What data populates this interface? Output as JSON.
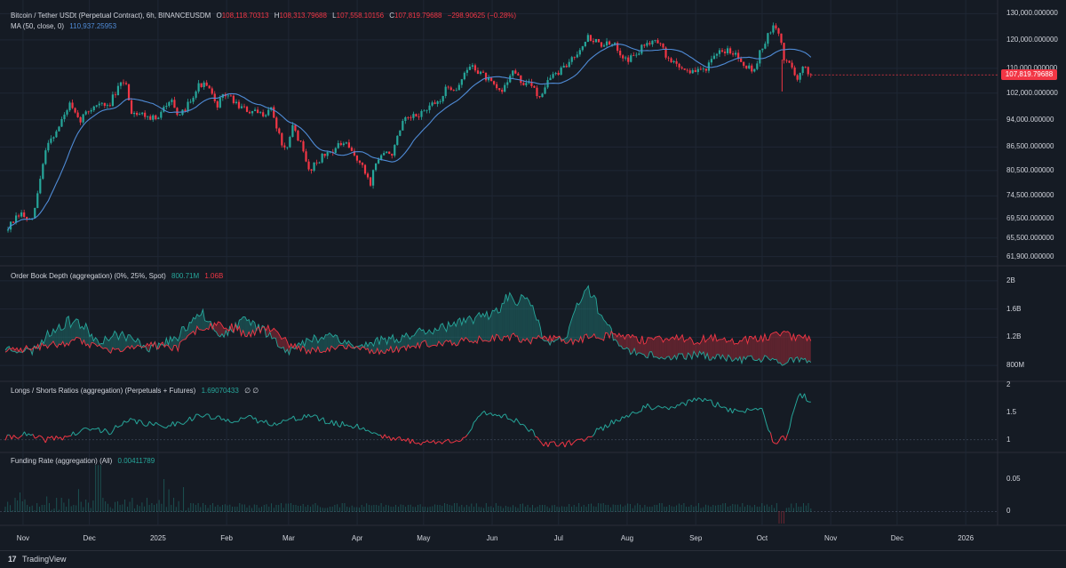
{
  "colors": {
    "bg": "#151b24",
    "grid": "#1f2734",
    "separator": "#2a2e39",
    "up": "#26a69a",
    "down": "#f23645",
    "ma": "#4f8bd6",
    "text": "#d1d4dc"
  },
  "header": {
    "symbol": "Bitcoin / Tether USDt (Perpetual Contract), 6h, BINANCEUSDM",
    "open_key": "O",
    "open": "108,118.70313",
    "high_key": "H",
    "high": "108,313.79688",
    "low_key": "L",
    "low": "107,558.10156",
    "close_key": "C",
    "close": "107,819.79688",
    "change": "−298.90625 (−0.28%)",
    "ma_label": "MA (50, close, 0)",
    "ma_value": "110,937.25953"
  },
  "price_badge": "107,819.79688",
  "orderbook": {
    "label": "Order Book Depth (aggregation) (0%, 25%, Spot)",
    "value1": "800.71M",
    "value2": "1.06B"
  },
  "longshort": {
    "label": "Longs / Shorts Ratios (aggregation) (Perpetuals + Futures)",
    "value": "1.69070433",
    "extra": "∅ ∅"
  },
  "funding": {
    "label": "Funding Rate (aggregation) (All)",
    "value": "0.00411789"
  },
  "footer": {
    "logo": "17",
    "brand": "TradingView"
  },
  "chart_data": [
    {
      "type": "candlestick",
      "title": "Bitcoin / Tether USDt (Perpetual Contract), 6h, BINANCEUSDM",
      "y_scale": "log",
      "ylim": [
        60500,
        133000
      ],
      "y_ticks": [
        "130,000.000000",
        "120,000.000000",
        "110,000.000000",
        "102,000.000000",
        "94,000.000000",
        "86,500.000000",
        "80,500.000000",
        "74,500.000000",
        "69,500.000000",
        "65,500.000000",
        "61,900.000000"
      ],
      "x_ticks": [
        "Nov",
        "Dec",
        "2025",
        "Feb",
        "Mar",
        "Apr",
        "May",
        "Jun",
        "Jul",
        "Aug",
        "Sep",
        "Oct",
        "Nov",
        "Dec",
        "2026"
      ],
      "x_range": [
        "2024-10-24",
        "2026-01-15"
      ],
      "series_close": {
        "t": [
          "2024-10-24",
          "2024-10-31",
          "2024-11-05",
          "2024-11-08",
          "2024-11-12",
          "2024-11-16",
          "2024-11-22",
          "2024-11-26",
          "2024-12-01",
          "2024-12-05",
          "2024-12-09",
          "2024-12-12",
          "2024-12-17",
          "2024-12-20",
          "2024-12-26",
          "2025-01-01",
          "2025-01-07",
          "2025-01-10",
          "2025-01-15",
          "2025-01-20",
          "2025-01-24",
          "2025-01-27",
          "2025-02-01",
          "2025-02-04",
          "2025-02-10",
          "2025-02-17",
          "2025-02-21",
          "2025-02-25",
          "2025-02-28",
          "2025-03-03",
          "2025-03-06",
          "2025-03-10",
          "2025-03-14",
          "2025-03-20",
          "2025-03-26",
          "2025-04-01",
          "2025-04-07",
          "2025-04-09",
          "2025-04-12",
          "2025-04-17",
          "2025-04-22",
          "2025-04-26",
          "2025-05-02",
          "2025-05-08",
          "2025-05-12",
          "2025-05-16",
          "2025-05-22",
          "2025-05-27",
          "2025-06-01",
          "2025-06-05",
          "2025-06-10",
          "2025-06-14",
          "2025-06-20",
          "2025-06-22",
          "2025-06-27",
          "2025-07-03",
          "2025-07-10",
          "2025-07-14",
          "2025-07-20",
          "2025-07-26",
          "2025-08-01",
          "2025-08-04",
          "2025-08-10",
          "2025-08-14",
          "2025-08-19",
          "2025-08-25",
          "2025-08-31",
          "2025-09-06",
          "2025-09-12",
          "2025-09-17",
          "2025-09-22",
          "2025-09-27",
          "2025-10-01",
          "2025-10-06",
          "2025-10-09",
          "2025-10-11",
          "2025-10-14",
          "2025-10-17",
          "2025-10-20",
          "2025-10-23"
        ],
        "close": [
          67000,
          70500,
          68500,
          76000,
          88000,
          90500,
          98500,
          93500,
          97000,
          99000,
          97500,
          101000,
          106500,
          96500,
          95500,
          94000,
          101500,
          93500,
          99500,
          105000,
          103500,
          98000,
          102000,
          99500,
          96500,
          95500,
          97500,
          89000,
          84500,
          92500,
          88000,
          80500,
          83000,
          85500,
          87500,
          83500,
          77500,
          82000,
          84500,
          85000,
          93500,
          94500,
          96800,
          99500,
          104000,
          103500,
          111000,
          108500,
          104500,
          102000,
          109500,
          105500,
          104000,
          100500,
          107000,
          109500,
          116500,
          121000,
          118500,
          118000,
          113000,
          114000,
          119000,
          121000,
          113500,
          110500,
          108500,
          110500,
          115500,
          116500,
          112500,
          109000,
          117500,
          124800,
          122000,
          112500,
          111500,
          106500,
          110500,
          107800
        ],
        "ma50_last": 110937.25953,
        "last_close": 107819.79688
      }
    },
    {
      "type": "area",
      "title": "Order Book Depth (aggregation) (0%, 25%, Spot)",
      "ylim": [
        600000000,
        2200000000
      ],
      "y_ticks": [
        "2B",
        "1.6B",
        "1.2B",
        "800M"
      ],
      "series": [
        {
          "name": "bids",
          "t": [
            "2024-10-24",
            "2024-11-05",
            "2024-11-16",
            "2024-11-25",
            "2024-12-05",
            "2024-12-15",
            "2024-12-28",
            "2025-01-10",
            "2025-01-20",
            "2025-01-30",
            "2025-02-10",
            "2025-02-20",
            "2025-03-01",
            "2025-03-10",
            "2025-03-20",
            "2025-04-01",
            "2025-04-10",
            "2025-04-22",
            "2025-05-01",
            "2025-05-10",
            "2025-05-20",
            "2025-06-01",
            "2025-06-10",
            "2025-06-20",
            "2025-06-25",
            "2025-07-05",
            "2025-07-10",
            "2025-07-15",
            "2025-07-20",
            "2025-07-25",
            "2025-08-01",
            "2025-08-10",
            "2025-08-20",
            "2025-09-01",
            "2025-09-10",
            "2025-09-20",
            "2025-10-01",
            "2025-10-10",
            "2025-10-17",
            "2025-10-23"
          ],
          "values": [
            1050000000,
            1000000000,
            1350000000,
            1450000000,
            1150000000,
            1250000000,
            1050000000,
            1200000000,
            1600000000,
            1200000000,
            1450000000,
            1250000000,
            1000000000,
            1150000000,
            1250000000,
            1050000000,
            1150000000,
            1200000000,
            1300000000,
            1350000000,
            1400000000,
            1550000000,
            1800000000,
            1600000000,
            1100000000,
            1200000000,
            1700000000,
            1900000000,
            1550000000,
            1250000000,
            1000000000,
            950000000,
            900000000,
            950000000,
            920000000,
            880000000,
            900000000,
            850000000,
            880000000,
            830000000
          ]
        },
        {
          "name": "asks",
          "t": [
            "2024-10-24",
            "2024-11-05",
            "2024-11-16",
            "2024-11-25",
            "2024-12-05",
            "2024-12-15",
            "2024-12-28",
            "2025-01-10",
            "2025-01-20",
            "2025-01-30",
            "2025-02-10",
            "2025-02-20",
            "2025-03-01",
            "2025-03-10",
            "2025-03-20",
            "2025-04-01",
            "2025-04-10",
            "2025-04-22",
            "2025-05-01",
            "2025-05-10",
            "2025-05-20",
            "2025-06-01",
            "2025-06-10",
            "2025-06-20",
            "2025-06-25",
            "2025-07-05",
            "2025-07-10",
            "2025-07-15",
            "2025-07-20",
            "2025-07-25",
            "2025-08-01",
            "2025-08-10",
            "2025-08-20",
            "2025-09-01",
            "2025-09-10",
            "2025-09-20",
            "2025-10-01",
            "2025-10-10",
            "2025-10-17",
            "2025-10-23"
          ],
          "values": [
            1000000000,
            1050000000,
            1100000000,
            1150000000,
            1050000000,
            1000000000,
            1100000000,
            1050000000,
            1350000000,
            1400000000,
            1250000000,
            1350000000,
            1100000000,
            1000000000,
            1050000000,
            1050000000,
            1000000000,
            1050000000,
            1100000000,
            1100000000,
            1150000000,
            1200000000,
            1200000000,
            1150000000,
            1200000000,
            1150000000,
            1150000000,
            1200000000,
            1200000000,
            1250000000,
            1200000000,
            1150000000,
            1200000000,
            1150000000,
            1200000000,
            1150000000,
            1200000000,
            1250000000,
            1200000000,
            1180000000
          ]
        }
      ]
    },
    {
      "type": "line",
      "title": "Longs / Shorts Ratios (aggregation) (Perpetuals + Futures)",
      "ylim": [
        0.8,
        2.05
      ],
      "y_ticks": [
        "2",
        "1.5",
        "1"
      ],
      "baseline": 1.0,
      "t": [
        "2024-10-24",
        "2024-11-01",
        "2024-11-10",
        "2024-11-20",
        "2024-12-01",
        "2024-12-10",
        "2024-12-20",
        "2025-01-01",
        "2025-01-10",
        "2025-01-20",
        "2025-02-01",
        "2025-02-10",
        "2025-02-20",
        "2025-03-01",
        "2025-03-10",
        "2025-03-20",
        "2025-04-01",
        "2025-04-10",
        "2025-04-20",
        "2025-05-01",
        "2025-05-10",
        "2025-05-20",
        "2025-05-28",
        "2025-06-05",
        "2025-06-15",
        "2025-06-25",
        "2025-07-05",
        "2025-07-12",
        "2025-07-20",
        "2025-08-01",
        "2025-08-10",
        "2025-08-20",
        "2025-09-01",
        "2025-09-10",
        "2025-09-20",
        "2025-10-01",
        "2025-10-06",
        "2025-10-12",
        "2025-10-18",
        "2025-10-23"
      ],
      "values": [
        1.02,
        1.1,
        1.0,
        1.05,
        1.2,
        1.15,
        1.35,
        1.25,
        1.3,
        1.45,
        1.35,
        1.4,
        1.3,
        1.35,
        1.45,
        1.3,
        1.25,
        1.1,
        1.0,
        0.95,
        0.95,
        1.05,
        1.5,
        1.45,
        1.3,
        0.9,
        0.92,
        1.0,
        1.2,
        1.45,
        1.6,
        1.55,
        1.75,
        1.65,
        1.5,
        1.6,
        0.95,
        1.05,
        1.85,
        1.69
      ]
    },
    {
      "type": "bar",
      "title": "Funding Rate (aggregation) (All)",
      "ylim": [
        -0.02,
        0.09
      ],
      "y_ticks": [
        "0.05",
        "0"
      ],
      "last_value": 0.00411789
    }
  ]
}
